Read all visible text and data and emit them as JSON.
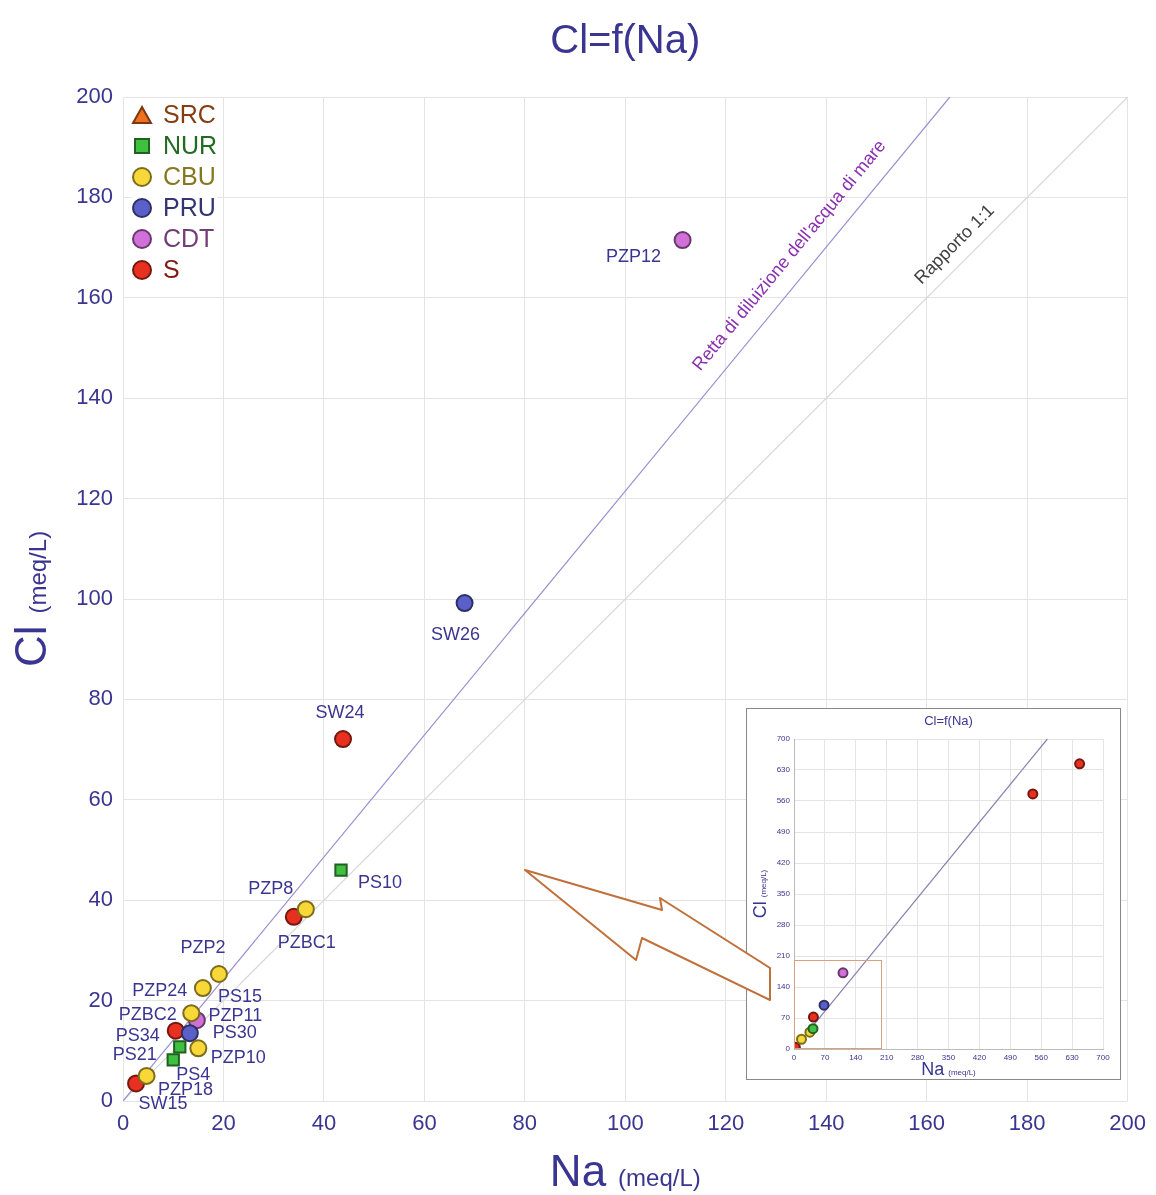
{
  "chart_data": [
    {
      "type": "scatter",
      "title": "Cl=f(Na)",
      "xlabel": "Na (meq/L)",
      "ylabel": "Cl (meq/L)",
      "xlim": [
        0,
        200
      ],
      "ylim": [
        0,
        200
      ],
      "xticks": [
        0,
        20,
        40,
        60,
        80,
        100,
        120,
        140,
        160,
        180,
        200
      ],
      "yticks": [
        0,
        20,
        40,
        60,
        80,
        100,
        120,
        140,
        160,
        180,
        200
      ],
      "grid": true,
      "legend": "top left",
      "series": [
        {
          "name": "SRC",
          "type": "scatter",
          "marker": "triangle",
          "color": "#f07020"
        },
        {
          "name": "NUR",
          "type": "scatter",
          "marker": "square",
          "color": "#40c040",
          "x": [
            43.4,
            11.3,
            10
          ],
          "values": [
            46,
            10.8,
            8.2
          ]
        },
        {
          "name": "CBU",
          "type": "scatter",
          "marker": "circle",
          "color": "#f8d838",
          "x": [
            36.4,
            19.1,
            15.9,
            13.6,
            15,
            4.7
          ],
          "values": [
            38.2,
            25.3,
            22.5,
            17.5,
            10.5,
            5
          ]
        },
        {
          "name": "PRU",
          "type": "scatter",
          "marker": "circle",
          "color": "#5a60c8",
          "x": [
            68,
            13.3
          ],
          "values": [
            99.2,
            13.5
          ]
        },
        {
          "name": "CDT",
          "type": "scatter",
          "marker": "circle",
          "color": "#d070d8",
          "x": [
            111.4,
            14.7
          ],
          "values": [
            171.5,
            16.1
          ]
        },
        {
          "name": "S",
          "type": "scatter",
          "marker": "circle",
          "color": "#e83020",
          "x": [
            43.8,
            34,
            10.5,
            2.6
          ],
          "values": [
            72.1,
            36.7,
            14,
            3.5
          ]
        },
        {
          "type": "line",
          "marker": "none",
          "color": "#9b8fd0",
          "x": [
            0,
            164.6
          ],
          "values": [
            0,
            200
          ]
        },
        {
          "type": "line",
          "marker": "none",
          "color": "#d8d8d8",
          "x": [
            0,
            200
          ],
          "values": [
            0,
            200
          ]
        }
      ],
      "annotations": [
        {
          "text": "PZP12",
          "x": 111.4,
          "y": 171.5
        },
        {
          "text": "SW26",
          "x": 68,
          "y": 99.2
        },
        {
          "text": "SW24",
          "x": 43.8,
          "y": 72.1
        },
        {
          "text": "PS10",
          "x": 43.4,
          "y": 46
        },
        {
          "text": "PZP8",
          "x": 36.4,
          "y": 38.2
        },
        {
          "text": "PZBC1",
          "x": 34,
          "y": 36.7
        },
        {
          "text": "PZP2",
          "x": 19.1,
          "y": 25.3
        },
        {
          "text": "PZP24",
          "x": 15.9,
          "y": 22.5
        },
        {
          "text": "PS15",
          "x": 19.1,
          "y": 25.3
        },
        {
          "text": "PZP11",
          "x": 13.6,
          "y": 17.5
        },
        {
          "text": "PZBC2",
          "x": 10.5,
          "y": 14
        },
        {
          "text": "PS34",
          "x": 13.3,
          "y": 13.5
        },
        {
          "text": "PS30",
          "x": 14.7,
          "y": 16.1
        },
        {
          "text": "PS21",
          "x": 11.3,
          "y": 10.8
        },
        {
          "text": "PZP10",
          "x": 15,
          "y": 10.5
        },
        {
          "text": "PS4",
          "x": 10,
          "y": 8.2
        },
        {
          "text": "PZP18",
          "x": 4.7,
          "y": 5
        },
        {
          "text": "SW15",
          "x": 2.6,
          "y": 3.5
        },
        {
          "text": "Retta di diluizione dell'acqua di mare",
          "x": 132.7,
          "y": 161.2
        },
        {
          "text": "Rapporto 1:1",
          "x": 165.6,
          "y": 165.6
        }
      ]
    },
    {
      "type": "scatter",
      "title": "Cl=f(Na)",
      "xlabel": "Na (meq/L)",
      "ylabel": "Cl (meq/L)",
      "xlim": [
        0,
        700
      ],
      "ylim": [
        0,
        700
      ],
      "xticks": [
        0,
        70,
        140,
        210,
        280,
        350,
        420,
        490,
        560,
        630,
        700
      ],
      "yticks": [
        0,
        70,
        140,
        210,
        280,
        350,
        420,
        490,
        560,
        630,
        700
      ],
      "grid": true,
      "series": [
        {
          "type": "scatter",
          "marker": "circle",
          "color": "#40c040",
          "x": [
            43
          ],
          "values": [
            46
          ]
        },
        {
          "type": "scatter",
          "marker": "circle",
          "color": "#f8d838",
          "x": [
            36,
            17
          ],
          "values": [
            38,
            22
          ]
        },
        {
          "type": "scatter",
          "marker": "circle",
          "color": "#5a60c8",
          "x": [
            68
          ],
          "values": [
            99
          ]
        },
        {
          "type": "scatter",
          "marker": "circle",
          "color": "#d070d8",
          "x": [
            111
          ],
          "values": [
            172
          ]
        },
        {
          "type": "scatter",
          "marker": "circle",
          "color": "#e83020",
          "x": [
            647,
            541,
            44,
            3
          ],
          "values": [
            644,
            576,
            72,
            4
          ]
        },
        {
          "type": "line",
          "marker": "none",
          "color": "#8a80b0",
          "x": [
            0,
            574
          ],
          "values": [
            0,
            700
          ]
        }
      ]
    }
  ]
}
